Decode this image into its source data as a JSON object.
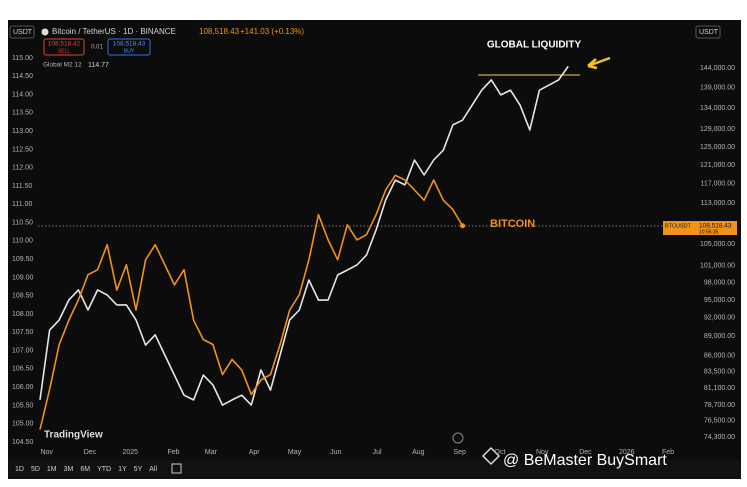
{
  "header": {
    "currency_left": "USDT",
    "symbol": "Bitcoin / TetherUS · 1D · BINANCE",
    "last": "108,518.43",
    "change": "+141.03 (+0.13%)",
    "sell_price": "108,518.42",
    "sell": "SELL",
    "spread": "0.01",
    "buy_price": "108,518.43",
    "buy": "BUY",
    "indicator": "Global M2 12",
    "indicator_value": "114.77",
    "currency_right": "USDT"
  },
  "price_tag": {
    "symbol": "BTCUSDT",
    "price": "108,518.43",
    "countdown": "10:56:35"
  },
  "timeframes": [
    "1D",
    "5D",
    "1M",
    "3M",
    "6M",
    "YTD",
    "1Y",
    "5Y",
    "All"
  ],
  "branding": "TradingView",
  "watermark": "@ BeMaster BuySmart",
  "chart_data": {
    "type": "line",
    "annotations": [
      "GLOBAL LIQUIDITY",
      "BITCOIN"
    ],
    "xlim": [
      0,
      68
    ],
    "xticks": [
      {
        "value": 0.7,
        "label": "Nov"
      },
      {
        "value": 5.2,
        "label": "Dec"
      },
      {
        "value": 9.4,
        "label": "2025"
      },
      {
        "value": 13.9,
        "label": "Feb"
      },
      {
        "value": 17.8,
        "label": "Mar"
      },
      {
        "value": 22.3,
        "label": "Apr"
      },
      {
        "value": 26.5,
        "label": "May"
      },
      {
        "value": 30.8,
        "label": "Jun"
      },
      {
        "value": 35.1,
        "label": "Jul"
      },
      {
        "value": 39.4,
        "label": "Aug"
      },
      {
        "value": 43.7,
        "label": "Sep"
      },
      {
        "value": 47.9,
        "label": "Oct"
      },
      {
        "value": 52.3,
        "label": "Nov"
      },
      {
        "value": 56.8,
        "label": "Dec"
      },
      {
        "value": 61.1,
        "label": "2026"
      },
      {
        "value": 65.4,
        "label": "Feb"
      }
    ],
    "ylim": [
      104.5,
      115
    ],
    "yticks": [
      {
        "value": 115,
        "label": "115.00"
      },
      {
        "value": 114.5,
        "label": "114.50"
      },
      {
        "value": 114,
        "label": "114.00"
      },
      {
        "value": 113.5,
        "label": "113.50"
      },
      {
        "value": 113,
        "label": "113.00"
      },
      {
        "value": 112.5,
        "label": "112.50"
      },
      {
        "value": 112,
        "label": "112.00"
      },
      {
        "value": 111.5,
        "label": "111.50"
      },
      {
        "value": 111,
        "label": "111.00"
      },
      {
        "value": 110.5,
        "label": "110.50"
      },
      {
        "value": 110,
        "label": "110.00"
      },
      {
        "value": 109.5,
        "label": "109.50"
      },
      {
        "value": 109,
        "label": "109.00"
      },
      {
        "value": 108.5,
        "label": "108.50"
      },
      {
        "value": 108,
        "label": "108.00"
      },
      {
        "value": 107.5,
        "label": "107.50"
      },
      {
        "value": 107,
        "label": "107.00"
      },
      {
        "value": 106.5,
        "label": "106.50"
      },
      {
        "value": 106,
        "label": "106.00"
      },
      {
        "value": 105.5,
        "label": "105.50"
      },
      {
        "value": 105,
        "label": "105.00"
      },
      {
        "value": 104.5,
        "label": "104.50"
      }
    ],
    "y2log": true,
    "y2lim": [
      74300,
      144000
    ],
    "y2ticks": [
      {
        "value": 144000,
        "label": "144,000.00"
      },
      {
        "value": 139000,
        "label": "139,000.00"
      },
      {
        "value": 134000,
        "label": "134,000.00"
      },
      {
        "value": 129000,
        "label": "129,000.00"
      },
      {
        "value": 125000,
        "label": "125,000.00"
      },
      {
        "value": 121000,
        "label": "121,000.00"
      },
      {
        "value": 117000,
        "label": "117,000.00"
      },
      {
        "value": 113000,
        "label": "113,000.00"
      },
      {
        "value": 105000,
        "label": "105,000.00"
      },
      {
        "value": 101000,
        "label": "101,000.00"
      },
      {
        "value": 98000,
        "label": "98,000.00"
      },
      {
        "value": 95000,
        "label": "95,000.00"
      },
      {
        "value": 92000,
        "label": "92,000.00"
      },
      {
        "value": 89000,
        "label": "89,000.00"
      },
      {
        "value": 86000,
        "label": "86,000.00"
      },
      {
        "value": 83500,
        "label": "83,500.00"
      },
      {
        "value": 81100,
        "label": "81,100.00"
      },
      {
        "value": 78700,
        "label": "78,700.00"
      },
      {
        "value": 76500,
        "label": "76,500.00"
      },
      {
        "value": 74300,
        "label": "74,300.00"
      }
    ],
    "series": [
      {
        "name": "Global M2 12",
        "color": "#e6e6e6",
        "values": [
          105.65,
          107.56,
          107.84,
          108.38,
          108.66,
          108.11,
          108.66,
          108.52,
          108.25,
          108.25,
          107.84,
          107.15,
          107.43,
          106.88,
          106.33,
          105.78,
          105.65,
          106.33,
          106.06,
          105.51,
          105.65,
          105.78,
          105.51,
          106.47,
          105.92,
          106.88,
          107.84,
          108.11,
          108.93,
          108.38,
          108.38,
          109.07,
          109.2,
          109.34,
          109.61,
          110.3,
          111.12,
          111.66,
          111.53,
          112.21,
          111.8,
          112.21,
          112.48,
          113.17,
          113.3,
          113.71,
          114.12,
          114.4,
          113.99,
          114.12,
          113.71,
          113.03,
          114.12,
          114.26,
          114.4,
          114.77
        ]
      },
      {
        "name": "BTCUSDT",
        "color": "#f0921c",
        "axis": "y2",
        "values": [
          75300,
          80900,
          87700,
          91600,
          95000,
          99400,
          100300,
          104900,
          96700,
          101200,
          93300,
          102100,
          104900,
          101200,
          97600,
          100300,
          91600,
          88500,
          87700,
          83100,
          85400,
          83800,
          80200,
          82300,
          83100,
          87700,
          93300,
          95900,
          102100,
          110700,
          105800,
          102100,
          108700,
          105800,
          106800,
          110700,
          115700,
          118800,
          117800,
          115700,
          113600,
          117800,
          113600,
          111700,
          108518.43,
          null,
          null,
          null,
          null,
          null,
          null,
          null,
          null,
          null,
          null,
          null
        ]
      }
    ]
  }
}
